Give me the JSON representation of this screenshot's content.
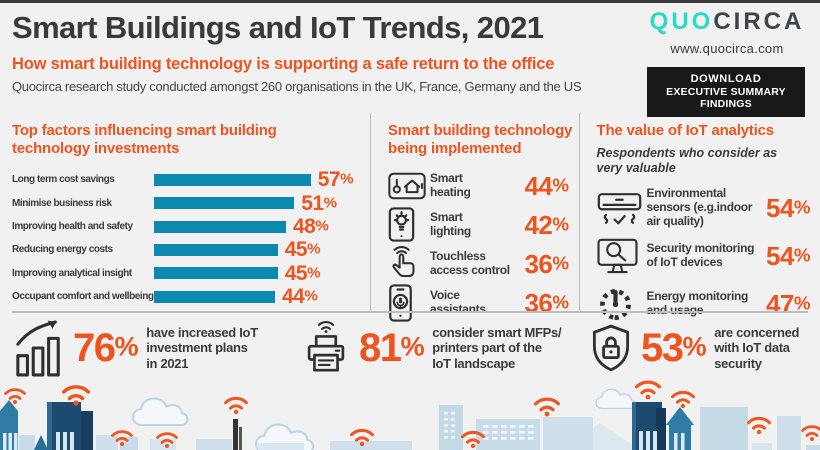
{
  "header": {
    "title": "Smart Buildings and IoT Trends, 2021",
    "subtitle": "How smart building technology is supporting a safe return to the office",
    "description": "Quocirca research study conducted amongst 260 organisations in the UK, France, Germany and the US",
    "logo": {
      "part1": "QUO",
      "part2": "CIRCA",
      "website": "www.quocirca.com"
    },
    "download_button": {
      "line1": "DOWNLOAD",
      "line2": "EXECUTIVE SUMMARY FINDINGS"
    }
  },
  "chart_data": {
    "type": "bar",
    "orientation": "horizontal",
    "title": "Top factors influencing smart building\ntechnology investments",
    "categories": [
      "Long term cost savings",
      "Minimise business risk",
      "Improving health and safety",
      "Reducing energy costs",
      "Improving analytical insight",
      "Occupant comfort and wellbeing"
    ],
    "values": [
      57,
      51,
      48,
      45,
      45,
      44
    ],
    "value_labels": [
      "57",
      "51",
      "48",
      "45",
      "45",
      "44"
    ],
    "unit": "%",
    "xlim": [
      0,
      60
    ],
    "bar_color": "#0b89ae",
    "grid": false,
    "legend": "none"
  },
  "implemented": {
    "heading": "Smart building technology\nbeing implemented",
    "items": [
      {
        "icon": "smart-heating-icon",
        "label": "Smart\nheating",
        "value": "44",
        "unit": "%"
      },
      {
        "icon": "smart-lighting-icon",
        "label": "Smart\nlighting",
        "value": "42",
        "unit": "%"
      },
      {
        "icon": "touchless-access-icon",
        "label": "Touchless\naccess control",
        "value": "36",
        "unit": "%"
      },
      {
        "icon": "voice-assistant-icon",
        "label": "Voice\nassistants",
        "value": "36",
        "unit": "%"
      }
    ]
  },
  "analytics": {
    "heading": "The value of IoT analytics",
    "subheading": "Respondents who consider as\nvery valuable",
    "items": [
      {
        "icon": "air-conditioner-icon",
        "label": "Environmental\nsensors (e.g.indoor\nair quality)",
        "value": "54",
        "unit": "%"
      },
      {
        "icon": "security-monitor-icon",
        "label": "Security monitoring\nof IoT devices",
        "value": "54",
        "unit": "%"
      },
      {
        "icon": "energy-gauge-icon",
        "label": "Energy monitoring\nand usage",
        "value": "47",
        "unit": "%"
      }
    ]
  },
  "bottom_stats": [
    {
      "icon": "growth-chart-icon",
      "value": "76",
      "unit": "%",
      "label": "have increased IoT\ninvestment plans\nin 2021"
    },
    {
      "icon": "smart-printer-icon",
      "value": "81",
      "unit": "%",
      "label": "consider smart MFPs/\nprinters part of the\nIoT landscape"
    },
    {
      "icon": "shield-lock-icon",
      "value": "53",
      "unit": "%",
      "label": "are concerned\nwith IoT data\nsecurity"
    }
  ],
  "colors": {
    "accent_orange": "#ee541f",
    "bar_teal": "#0b89ae",
    "logo_teal": "#2bd9c5",
    "dark_text": "#3a3a3a",
    "background": "#f1f1f2",
    "button_black": "#181818",
    "skyline_dark_blue": "#1d4b70",
    "skyline_mid_blue": "#2e7ca6",
    "skyline_pale_blue": "#c7dbe8"
  }
}
